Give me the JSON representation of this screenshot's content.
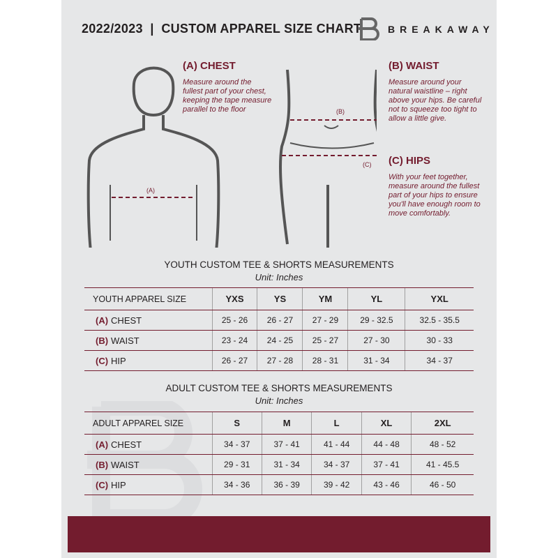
{
  "header": {
    "title": "2022/2023  |  CUSTOM APPAREL SIZE CHART",
    "brand": "BREAKAWAY"
  },
  "colors": {
    "accent": "#731c2e",
    "background": "#e6e7e8"
  },
  "guide": {
    "chest": {
      "marker": "(A)",
      "title": "(A) CHEST",
      "text": "Measure around the fullest part of your chest, keeping the tape measure parallel to the floor"
    },
    "waist": {
      "marker": "(B)",
      "title": "(B) WAIST",
      "text": "Measure around your natural waistline – right above your hips. Be careful not to squeeze too tight to allow a little give."
    },
    "hips": {
      "marker": "(C)",
      "title": "(C) HIPS",
      "text": "With your feet together, measure around the fullest part of your hips to ensure you'll have enough room to move comfortably."
    }
  },
  "youth": {
    "title": "YOUTH CUSTOM TEE & SHORTS MEASUREMENTS",
    "unit": "Unit: Inches",
    "size_label": "YOUTH APPAREL SIZE",
    "sizes": [
      "YXS",
      "YS",
      "YM",
      "YL",
      "YXL"
    ],
    "rows": [
      {
        "code": "(A)",
        "name": "CHEST",
        "values": [
          "25 - 26",
          "26 - 27",
          "27 - 29",
          "29 - 32.5",
          "32.5 - 35.5"
        ]
      },
      {
        "code": "(B)",
        "name": "WAIST",
        "values": [
          "23 - 24",
          "24 - 25",
          "25 - 27",
          "27 - 30",
          "30 - 33"
        ]
      },
      {
        "code": "(C)",
        "name": "HIP",
        "values": [
          "26 - 27",
          "27 - 28",
          "28 - 31",
          "31 - 34",
          "34 - 37"
        ]
      }
    ]
  },
  "adult": {
    "title": "ADULT CUSTOM TEE & SHORTS MEASUREMENTS",
    "unit": "Unit: Inches",
    "size_label": "ADULT APPAREL SIZE",
    "sizes": [
      "S",
      "M",
      "L",
      "XL",
      "2XL"
    ],
    "rows": [
      {
        "code": "(A)",
        "name": "CHEST",
        "values": [
          "34 - 37",
          "37 - 41",
          "41 - 44",
          "44 - 48",
          "48 - 52"
        ]
      },
      {
        "code": "(B)",
        "name": "WAIST",
        "values": [
          "29 - 31",
          "31 - 34",
          "34 - 37",
          "37 - 41",
          "41 - 45.5"
        ]
      },
      {
        "code": "(C)",
        "name": "HIP",
        "values": [
          "34 - 36",
          "36 - 39",
          "39 - 42",
          "43 - 46",
          "46 - 50"
        ]
      }
    ]
  }
}
